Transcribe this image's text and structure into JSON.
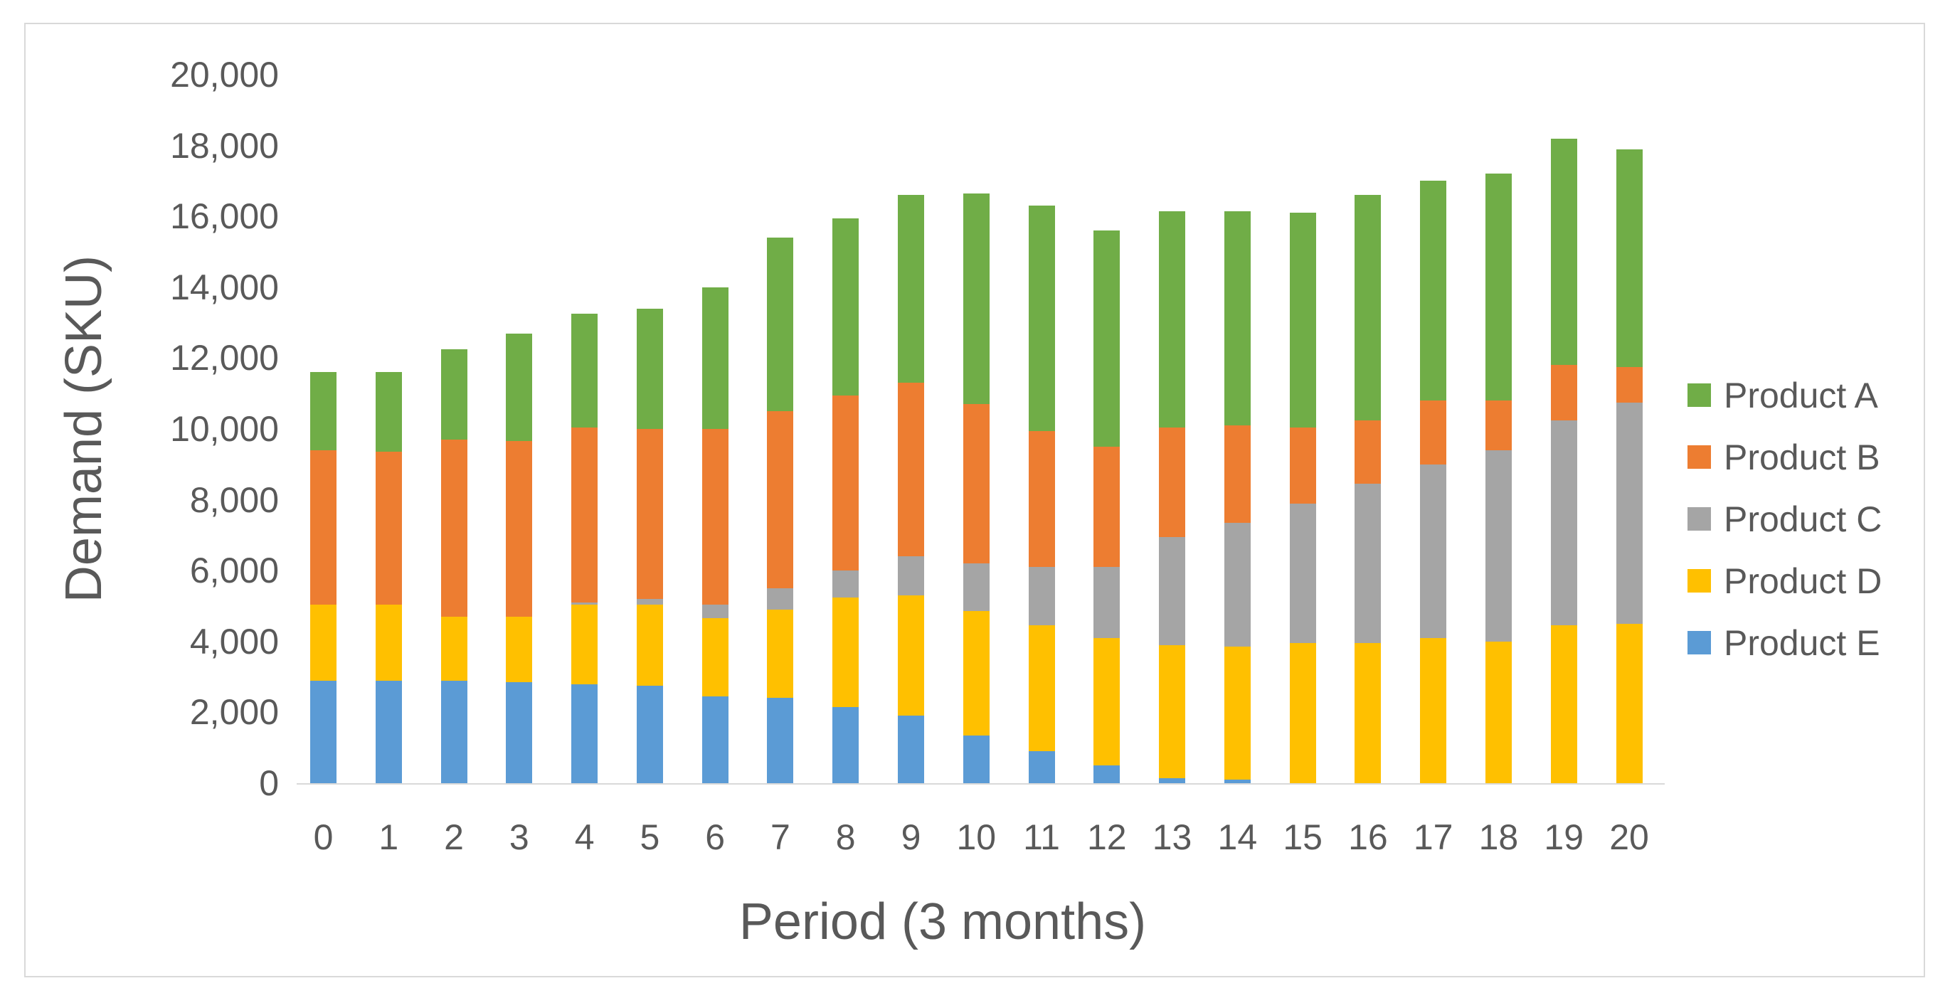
{
  "chart_data": {
    "type": "bar",
    "stacked": true,
    "title": "",
    "xlabel": "Period (3 months)",
    "ylabel": "Demand (SKU)",
    "categories": [
      "0",
      "1",
      "2",
      "3",
      "4",
      "5",
      "6",
      "7",
      "8",
      "9",
      "10",
      "11",
      "12",
      "13",
      "14",
      "15",
      "16",
      "17",
      "18",
      "19",
      "20"
    ],
    "series": [
      {
        "name": "Product A",
        "color": "#70AD47",
        "values": [
          2200,
          2250,
          2550,
          3050,
          3200,
          3400,
          4000,
          4900,
          5000,
          5300,
          5950,
          6350,
          6100,
          6100,
          6050,
          6050,
          6350,
          6200,
          6400,
          6400,
          6150
        ]
      },
      {
        "name": "Product B",
        "color": "#ED7D31",
        "values": [
          4350,
          4300,
          5000,
          4950,
          4950,
          4800,
          4950,
          5000,
          4950,
          4900,
          4500,
          3850,
          3400,
          3100,
          2750,
          2150,
          1800,
          1800,
          1400,
          1550,
          1000
        ]
      },
      {
        "name": "Product C",
        "color": "#A5A5A5",
        "values": [
          0,
          0,
          0,
          0,
          50,
          150,
          400,
          600,
          750,
          1100,
          1350,
          1650,
          2000,
          3050,
          3500,
          3950,
          4500,
          4900,
          5400,
          5800,
          6250
        ]
      },
      {
        "name": "Product D",
        "color": "#FFC000",
        "values": [
          2150,
          2150,
          1800,
          1850,
          2250,
          2300,
          2200,
          2500,
          3100,
          3400,
          3500,
          3550,
          3600,
          3750,
          3750,
          3950,
          3950,
          4100,
          4000,
          4450,
          4500
        ]
      },
      {
        "name": "Product E",
        "color": "#5B9BD5",
        "values": [
          2900,
          2900,
          2900,
          2850,
          2800,
          2750,
          2450,
          2400,
          2150,
          1900,
          1350,
          900,
          500,
          150,
          100,
          0,
          0,
          0,
          0,
          0,
          0
        ]
      }
    ],
    "stack_order_bottom_to_top": [
      "Product E",
      "Product D",
      "Product C",
      "Product B",
      "Product A"
    ],
    "totals": [
      11600,
      11600,
      12250,
      12700,
      13250,
      13400,
      14000,
      15400,
      15950,
      16600,
      16650,
      16300,
      15600,
      16150,
      16150,
      16100,
      16600,
      17000,
      17200,
      18200,
      17900
    ],
    "y_axis": {
      "min": 0,
      "max": 20000,
      "tick_interval": 2000,
      "tick_labels": [
        "0",
        "2,000",
        "4,000",
        "6,000",
        "8,000",
        "10,000",
        "12,000",
        "14,000",
        "16,000",
        "18,000",
        "20,000"
      ]
    },
    "legend": {
      "position": "right",
      "entries": [
        "Product A",
        "Product B",
        "Product C",
        "Product D",
        "Product E"
      ]
    },
    "grid": false,
    "colors": {
      "axis_line": "#D9D9D9",
      "frame_border": "#D9D9D9",
      "text": "#595959",
      "background": "#FFFFFF"
    }
  }
}
